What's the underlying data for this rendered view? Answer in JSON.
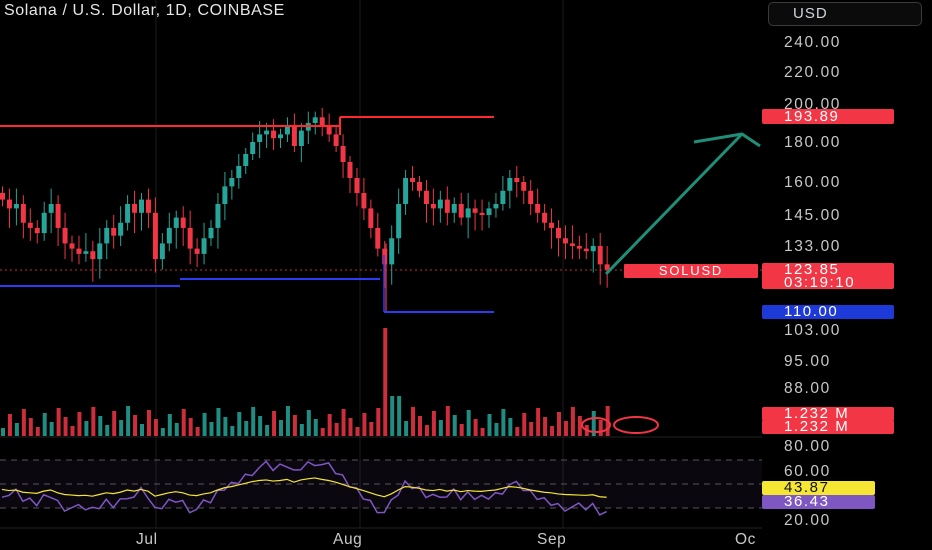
{
  "header": {
    "title": "Solana / U.S. Dollar, 1D, COINBASE",
    "currency_button": "USD"
  },
  "price_axis": {
    "ticks": [
      "240.00",
      "220.00",
      "200.00",
      "180.00",
      "160.00",
      "145.00",
      "133.00",
      "103.00",
      "95.00",
      "88.00"
    ]
  },
  "rsi_axis": {
    "ticks": [
      "80.00",
      "60.00",
      "20.00"
    ]
  },
  "time_axis": {
    "labels": [
      "Jul",
      "Aug",
      "Sep",
      "Oc"
    ]
  },
  "badges": {
    "level_high": "193.89",
    "symbol": "SOLUSD",
    "last_price": "123.85",
    "countdown": "03:19:10",
    "level_low": "110.00",
    "volume_1": "1.232 M",
    "volume_2": "1.232 M",
    "rsi_ma": "43.87",
    "rsi": "36.43"
  },
  "colors": {
    "up": "#26a69a",
    "down": "#f23645",
    "resistance": "#ff2a2a",
    "support": "#2a3df5",
    "arrow": "#1f8f78",
    "rsi": "#7e57c2",
    "rsi_ma": "#f5e634"
  },
  "chart_data": {
    "type": "candlestick",
    "symbol": "SOLUSD",
    "interval": "1D",
    "price_levels": {
      "resistance": 193.89,
      "support_range_low": 128,
      "support": 110.0,
      "last": 123.85
    },
    "closes": [
      152,
      148,
      150,
      142,
      140,
      138,
      146,
      150,
      140,
      134,
      132,
      130,
      131,
      128,
      134,
      140,
      137,
      142,
      150,
      146,
      152,
      146,
      128,
      134,
      140,
      144,
      140,
      132,
      130,
      136,
      140,
      150,
      158,
      162,
      168,
      174,
      180,
      184,
      186,
      182,
      184,
      188,
      178,
      186,
      190,
      193,
      188,
      184,
      178,
      170,
      162,
      155,
      148,
      140,
      132,
      126,
      136,
      150,
      162,
      160,
      156,
      150,
      148,
      152,
      146,
      150,
      144,
      148,
      146,
      145,
      148,
      150,
      156,
      162,
      160,
      156,
      150,
      146,
      142,
      140,
      136,
      134,
      133,
      132,
      131,
      133,
      126,
      124
    ],
    "volume_levels": "relative",
    "rsi": {
      "ma_value": 43.87,
      "value": 36.43,
      "bands": [
        70,
        50,
        30
      ]
    }
  }
}
